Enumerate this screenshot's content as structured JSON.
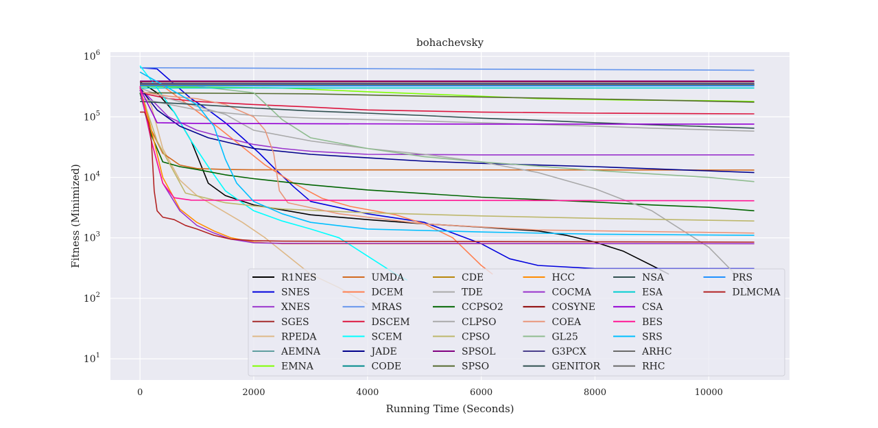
{
  "chart_data": {
    "type": "line",
    "title": "bohachevsky",
    "xlabel": "Running Time (Seconds)",
    "ylabel": "Fitness (Minimized)",
    "xlim": [
      -520,
      11420
    ],
    "ylim_log10": [
      0.65,
      6.07
    ],
    "yscale": "log",
    "xticks": [
      0,
      2000,
      4000,
      6000,
      8000,
      10000
    ],
    "xtick_labels": [
      "0",
      "2000",
      "4000",
      "6000",
      "8000",
      "10000"
    ],
    "yticks": [
      1,
      2,
      3,
      4,
      5,
      6
    ],
    "ytick_labels": [
      {
        "base": "10",
        "exp": "1"
      },
      {
        "base": "10",
        "exp": "2"
      },
      {
        "base": "10",
        "exp": "3"
      },
      {
        "base": "10",
        "exp": "4"
      },
      {
        "base": "10",
        "exp": "5"
      },
      {
        "base": "10",
        "exp": "6"
      }
    ],
    "grid": true,
    "legend_position": "lower-right",
    "series": [
      {
        "name": "R1NES",
        "color": "#000000",
        "x": [
          0,
          300,
          600,
          900,
          1200,
          1500,
          2000,
          3000,
          4000,
          5000,
          6000,
          7000,
          7500,
          8000,
          8500,
          9000,
          9300
        ],
        "y": [
          380000,
          250000,
          120000,
          40000,
          8000,
          5000,
          3500,
          2400,
          2000,
          1700,
          1500,
          1300,
          1100,
          850,
          600,
          350,
          250
        ]
      },
      {
        "name": "SNES",
        "color": "#0000dd",
        "x": [
          0,
          300,
          600,
          900,
          1200,
          1500,
          1800,
          2100,
          2400,
          2700,
          3000,
          4000,
          5000,
          5500,
          6000,
          6500,
          7000,
          8000,
          10800
        ],
        "y": [
          650000,
          620000,
          350000,
          200000,
          130000,
          80000,
          45000,
          25000,
          13000,
          7000,
          4000,
          2500,
          1800,
          1200,
          800,
          450,
          350,
          310,
          310
        ]
      },
      {
        "name": "XNES",
        "color": "#9932cc",
        "x": [
          0,
          500,
          1000,
          1500,
          2000,
          2500,
          3000,
          4000,
          6000,
          8000,
          10800
        ],
        "y": [
          300000,
          100000,
          60000,
          45000,
          35000,
          30000,
          27000,
          24000,
          23500,
          23500,
          23500
        ]
      },
      {
        "name": "SGES",
        "color": "#a52a2a",
        "x": [
          0,
          10800
        ],
        "y": [
          380000,
          380000
        ]
      },
      {
        "name": "RPEDA",
        "color": "#deb887",
        "x": [
          0,
          200,
          400,
          700,
          1000,
          1400,
          1800,
          2200,
          2600,
          3000,
          3500,
          4000
        ],
        "y": [
          330000,
          150000,
          30000,
          9000,
          5000,
          3000,
          1800,
          1000,
          500,
          250,
          150,
          80
        ]
      },
      {
        "name": "AEMNA",
        "color": "#5f9ea0",
        "x": [
          0,
          10800
        ],
        "y": [
          360000,
          360000
        ]
      },
      {
        "name": "EMNA",
        "color": "#7fff00",
        "x": [
          0,
          1000,
          2500,
          4000,
          5500,
          7000,
          8500,
          10000,
          10800
        ],
        "y": [
          320000,
          310000,
          300000,
          260000,
          230000,
          200000,
          190000,
          185000,
          180000
        ]
      },
      {
        "name": "UMDA",
        "color": "#d2691e",
        "x": [
          0,
          100,
          200,
          400,
          700,
          1000,
          1500,
          2000,
          10800
        ],
        "y": [
          280000,
          150000,
          60000,
          25000,
          16000,
          14000,
          13500,
          13300,
          13200
        ]
      },
      {
        "name": "DCEM",
        "color": "#ff7f50",
        "x": [
          0,
          300,
          700,
          1200,
          1700,
          2200,
          2700,
          3200,
          3700,
          4500,
          5000,
          5500,
          6000,
          6200
        ],
        "y": [
          550000,
          380000,
          200000,
          90000,
          38000,
          16000,
          8000,
          4500,
          3300,
          2400,
          1700,
          1000,
          350,
          250
        ]
      },
      {
        "name": "MRAS",
        "color": "#6495ed",
        "x": [
          0,
          5000,
          10800
        ],
        "y": [
          650000,
          620000,
          590000
        ]
      },
      {
        "name": "DSCEM",
        "color": "#dc143c",
        "x": [
          0,
          500,
          1000,
          2000,
          3000,
          4000,
          6000,
          8000,
          10800
        ],
        "y": [
          250000,
          200000,
          180000,
          160000,
          145000,
          130000,
          120000,
          115000,
          112000
        ]
      },
      {
        "name": "SCEM",
        "color": "#00ffff",
        "x": [
          0,
          300,
          600,
          900,
          1200,
          1500,
          2000,
          2500,
          3000,
          3500,
          4000,
          4500,
          4700
        ],
        "y": [
          700000,
          300000,
          120000,
          40000,
          15000,
          6000,
          2800,
          1900,
          1400,
          1000,
          500,
          250,
          200
        ]
      },
      {
        "name": "JADE",
        "color": "#00008b",
        "x": [
          0,
          300,
          700,
          1200,
          2000,
          3000,
          4000,
          5000,
          6000,
          8000,
          10800
        ],
        "y": [
          300000,
          130000,
          70000,
          45000,
          30000,
          24000,
          21000,
          18500,
          17000,
          15000,
          12000
        ]
      },
      {
        "name": "CODE",
        "color": "#008b8b",
        "x": [
          0,
          10800
        ],
        "y": [
          330000,
          330000
        ]
      },
      {
        "name": "CDE",
        "color": "#b8860b",
        "x": [
          0,
          10800
        ],
        "y": [
          340000,
          340000
        ]
      },
      {
        "name": "TDE",
        "color": "#a9a9a9",
        "x": [
          0,
          1000,
          2000,
          3000,
          4000,
          5000,
          6000,
          7000,
          8000,
          9000,
          10800
        ],
        "y": [
          200000,
          130000,
          105000,
          95000,
          90000,
          85000,
          80000,
          75000,
          70000,
          65000,
          58000
        ]
      },
      {
        "name": "CCPSO2",
        "color": "#006400",
        "x": [
          0,
          200,
          400,
          700,
          1000,
          1500,
          2000,
          3000,
          4000,
          5000,
          6000,
          7000,
          8000,
          9000,
          10000,
          10800
        ],
        "y": [
          250000,
          50000,
          18000,
          15000,
          13500,
          11000,
          9500,
          7500,
          6200,
          5400,
          4700,
          4300,
          3900,
          3500,
          3200,
          2800
        ]
      },
      {
        "name": "CLPSO",
        "color": "#a9a9a9",
        "x": [
          0,
          500,
          1000,
          1500,
          2000,
          3000,
          4000,
          5000,
          6000,
          7000,
          8000,
          9000,
          10000,
          10800
        ],
        "y": [
          300000,
          200000,
          150000,
          110000,
          60000,
          40000,
          30000,
          24000,
          18000,
          12000,
          6500,
          2800,
          700,
          120
        ]
      },
      {
        "name": "CPSO",
        "color": "#bdb76b",
        "x": [
          0,
          300,
          800,
          1500,
          2500,
          4000,
          6000,
          8000,
          10800
        ],
        "y": [
          280000,
          40000,
          5500,
          3800,
          3000,
          2600,
          2300,
          2100,
          1900
        ]
      },
      {
        "name": "SPSOL",
        "color": "#800080",
        "x": [
          0,
          10800
        ],
        "y": [
          390000,
          390000
        ]
      },
      {
        "name": "SPSO",
        "color": "#556b2f",
        "x": [
          0,
          3000,
          5000,
          7000,
          9000,
          10800
        ],
        "y": [
          250000,
          240000,
          220000,
          205000,
          190000,
          175000
        ]
      },
      {
        "name": "HCC",
        "color": "#ff8c00",
        "x": [
          0,
          200,
          400,
          700,
          1000,
          1300,
          1600,
          2000,
          2500,
          10800
        ],
        "y": [
          300000,
          60000,
          10000,
          3000,
          1800,
          1300,
          1000,
          850,
          800,
          800
        ]
      },
      {
        "name": "COCMA",
        "color": "#9932cc",
        "x": [
          0,
          200,
          400,
          700,
          1000,
          1300,
          1600,
          2000,
          2500,
          10800
        ],
        "y": [
          280000,
          40000,
          8000,
          2800,
          1600,
          1200,
          950,
          830,
          810,
          800
        ]
      },
      {
        "name": "COSYNE",
        "color": "#8b0000",
        "x": [
          0,
          10800
        ],
        "y": [
          350000,
          350000
        ]
      },
      {
        "name": "COEA",
        "color": "#e9967a",
        "x": [
          0,
          500,
          1000,
          1500,
          2000,
          2200,
          2350,
          2450,
          2600,
          3500,
          5000,
          7000,
          10800
        ],
        "y": [
          260000,
          220000,
          200000,
          160000,
          100000,
          60000,
          25000,
          6000,
          3800,
          2500,
          1700,
          1350,
          1200
        ]
      },
      {
        "name": "GL25",
        "color": "#8fbc8f",
        "x": [
          0,
          1000,
          2000,
          2500,
          3000,
          4000,
          5000,
          6000,
          8000,
          10000,
          10800
        ],
        "y": [
          330000,
          320000,
          250000,
          90000,
          45000,
          30000,
          22000,
          18000,
          13000,
          10000,
          8500
        ]
      },
      {
        "name": "G3PCX",
        "color": "#483d8b",
        "x": [
          0,
          10800
        ],
        "y": [
          355000,
          355000
        ]
      },
      {
        "name": "GENITOR",
        "color": "#2f4f4f",
        "x": [
          0,
          1000,
          2000,
          3000,
          4000,
          5000,
          6000,
          7000,
          8000,
          9000,
          10800
        ],
        "y": [
          180000,
          160000,
          140000,
          125000,
          115000,
          105000,
          95000,
          88000,
          80000,
          74000,
          65000
        ]
      },
      {
        "name": "NSA",
        "color": "#2f4f4f",
        "x": [
          0,
          10800
        ],
        "y": [
          340000,
          340000
        ]
      },
      {
        "name": "ESA",
        "color": "#00ced1",
        "x": [
          0,
          10800
        ],
        "y": [
          300000,
          300000
        ]
      },
      {
        "name": "CSA",
        "color": "#9400d3",
        "x": [
          0,
          300,
          1000,
          3000,
          6000,
          10800
        ],
        "y": [
          300000,
          80000,
          78000,
          77000,
          76000,
          76000
        ]
      },
      {
        "name": "BES",
        "color": "#ff1493",
        "x": [
          0,
          200,
          400,
          600,
          900,
          10800
        ],
        "y": [
          320000,
          40000,
          8000,
          4600,
          4200,
          4100
        ]
      },
      {
        "name": "SRS",
        "color": "#00bfff",
        "x": [
          0,
          500,
          1000,
          1300,
          1500,
          1700,
          2000,
          2500,
          3000,
          4000,
          6000,
          8000,
          10800
        ],
        "y": [
          550000,
          300000,
          160000,
          70000,
          20000,
          8000,
          4000,
          2500,
          1800,
          1400,
          1250,
          1150,
          1100
        ]
      },
      {
        "name": "ARHC",
        "color": "#696969",
        "x": [
          0,
          10800
        ],
        "y": [
          345000,
          345000
        ]
      },
      {
        "name": "RHC",
        "color": "#696969",
        "x": [
          0,
          10800
        ],
        "y": [
          335000,
          335000
        ]
      },
      {
        "name": "PRS",
        "color": "#1e90ff",
        "x": [
          0,
          10800
        ],
        "y": [
          325000,
          325000
        ]
      },
      {
        "name": "DLMCMA",
        "color": "#b22222",
        "x": [
          0,
          80,
          150,
          200,
          250,
          300,
          400,
          600,
          800,
          1000,
          1300,
          1600,
          2000,
          2500,
          10800
        ],
        "y": [
          120000,
          120000,
          80000,
          40000,
          6000,
          2800,
          2200,
          2000,
          1600,
          1400,
          1100,
          950,
          900,
          880,
          850
        ]
      }
    ]
  }
}
